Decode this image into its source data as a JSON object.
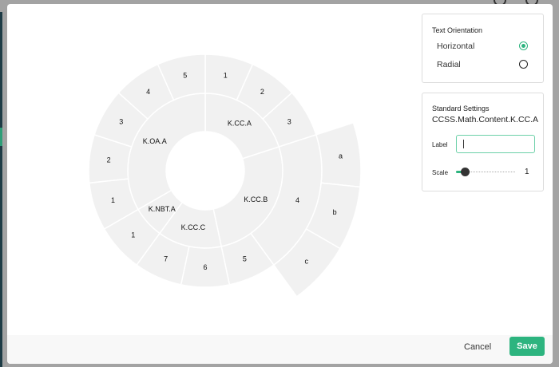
{
  "colors": {
    "accent": "#2db47f",
    "segment": "#f1f1f1"
  },
  "sunburst": {
    "type": "sunburst",
    "children": [
      {
        "name": "K.CC.A",
        "children": [
          {
            "name": "1"
          },
          {
            "name": "2"
          },
          {
            "name": "3"
          }
        ]
      },
      {
        "name": "K.CC.B",
        "children": [
          {
            "name": "4",
            "children": [
              {
                "name": "a"
              },
              {
                "name": "b"
              },
              {
                "name": "c"
              }
            ]
          },
          {
            "name": "5"
          }
        ]
      },
      {
        "name": "K.CC.C",
        "children": [
          {
            "name": "6"
          },
          {
            "name": "7"
          }
        ]
      },
      {
        "name": "K.NBT.A",
        "children": [
          {
            "name": "1"
          }
        ]
      },
      {
        "name": "K.OA.A",
        "children": [
          {
            "name": "1"
          },
          {
            "name": "2"
          },
          {
            "name": "3"
          },
          {
            "name": "4"
          },
          {
            "name": "5"
          }
        ]
      }
    ]
  },
  "orientation": {
    "title": "Text Orientation",
    "options": [
      {
        "label": "Horizontal",
        "selected": true
      },
      {
        "label": "Radial",
        "selected": false
      }
    ]
  },
  "standard": {
    "title": "Standard Settings",
    "code": "CCSS.Math.Content.K.CC.A",
    "label_label": "Label",
    "label_value": "",
    "scale_label": "Scale",
    "scale_value": "1",
    "scale_fraction": 0.1
  },
  "footer": {
    "cancel": "Cancel",
    "save": "Save"
  }
}
